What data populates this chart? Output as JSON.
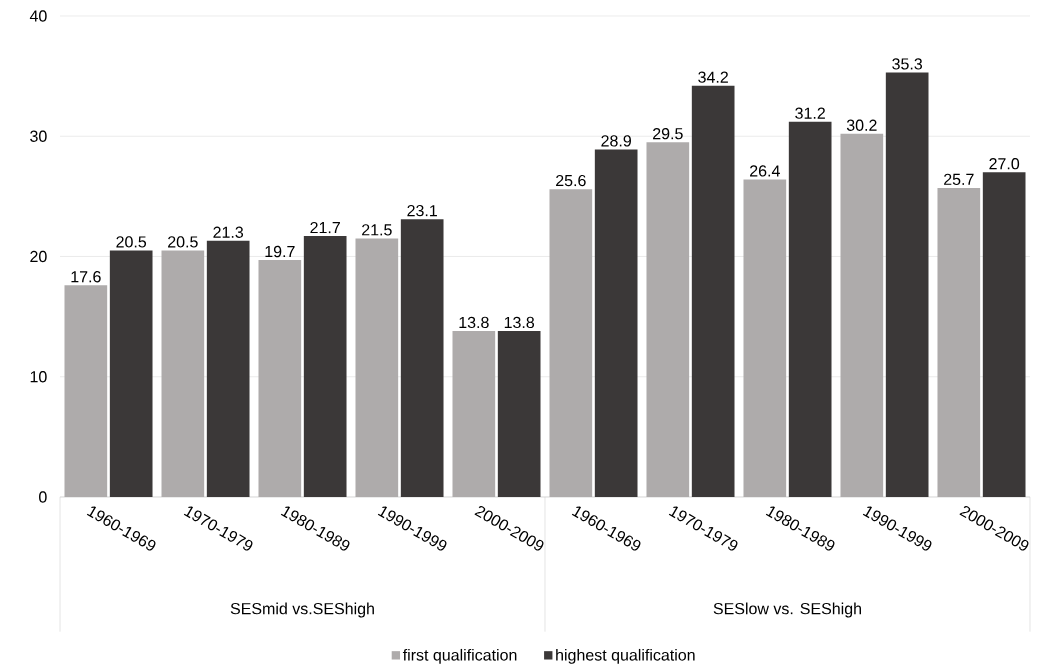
{
  "chart_data": {
    "type": "bar",
    "categories": [
      "1960-1969",
      "1970-1979",
      "1980-1989",
      "1990-1999",
      "2000-2009",
      "1960-1969",
      "1970-1979",
      "1980-1989",
      "1990-1999",
      "2000-2009"
    ],
    "series": [
      {
        "name": "first qualification",
        "color": "#aeabab",
        "values": [
          17.6,
          20.5,
          19.7,
          21.5,
          13.8,
          25.6,
          29.5,
          26.4,
          30.2,
          25.7
        ],
        "value_labels": [
          "17.6",
          "20.5",
          "19.7",
          "21.5",
          "13.8",
          "25.6",
          "29.5",
          "26.4",
          "30.2",
          "25.7"
        ]
      },
      {
        "name": "highest qualification",
        "color": "#3b3838",
        "values": [
          20.5,
          21.3,
          21.7,
          23.1,
          13.8,
          28.9,
          34.2,
          31.2,
          35.3,
          27.0
        ],
        "value_labels": [
          "20.5",
          "21.3",
          "21.7",
          "23.1",
          "13.8",
          "28.9",
          "34.2",
          "31.2",
          "35.3",
          "27.0"
        ]
      }
    ],
    "annotations": [
      "SESmid vs.SEShigh",
      "SESlow vs. SEShigh"
    ],
    "ylim": [
      0,
      40
    ],
    "yticks": [
      0,
      10,
      20,
      30,
      40
    ],
    "grid": "y",
    "legend": "bottom"
  }
}
